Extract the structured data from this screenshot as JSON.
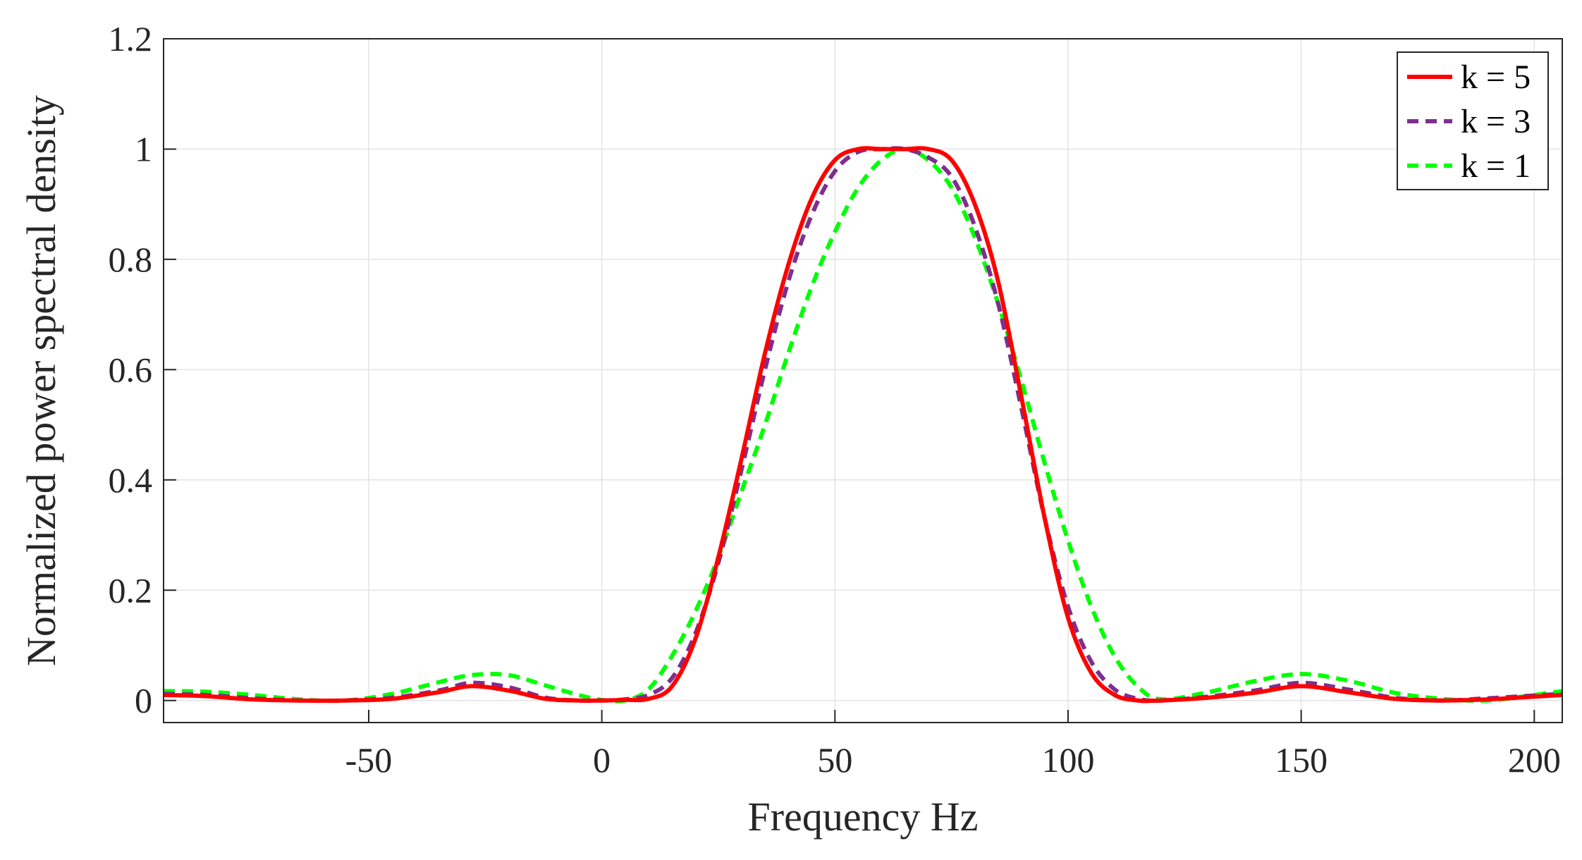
{
  "chart_data": {
    "type": "line",
    "title": "",
    "xlabel": "Frequency Hz",
    "ylabel": "Normalized power spectral density",
    "xlim": [
      -94,
      206
    ],
    "ylim": [
      -0.04,
      1.2
    ],
    "xticks": [
      -50,
      0,
      50,
      100,
      150,
      200
    ],
    "xtick_labels": [
      "-50",
      "0",
      "50",
      "100",
      "150",
      "200"
    ],
    "yticks": [
      0,
      0.2,
      0.4,
      0.6,
      0.8,
      1,
      1.2
    ],
    "ytick_labels": [
      "0",
      "0.2",
      "0.4",
      "0.6",
      "0.8",
      "1",
      "1.2"
    ],
    "grid": true,
    "legend_position": "top-right",
    "x": [
      -94,
      -85,
      -75,
      -65,
      -55,
      -45,
      -35,
      -28,
      -20,
      -12,
      -5,
      0,
      5,
      10,
      15,
      20,
      25,
      30,
      35,
      40,
      45,
      50,
      55,
      60,
      65,
      70,
      75,
      80,
      85,
      90,
      95,
      100,
      105,
      110,
      115,
      120,
      130,
      140,
      150,
      160,
      170,
      180,
      190,
      200,
      206
    ],
    "series": [
      {
        "name": "k = 5",
        "color": "#ff0000",
        "dash": "solid",
        "values": [
          0.01,
          0.008,
          0.002,
          0,
          0,
          0.003,
          0.015,
          0.026,
          0.018,
          0.003,
          0,
          0,
          0.001,
          0.003,
          0.025,
          0.11,
          0.26,
          0.44,
          0.63,
          0.79,
          0.91,
          0.98,
          1.0,
          1.0,
          1.0,
          1.0,
          0.98,
          0.9,
          0.76,
          0.55,
          0.33,
          0.15,
          0.05,
          0.01,
          0.0,
          0.0,
          0.005,
          0.014,
          0.026,
          0.015,
          0.003,
          0.0,
          0.002,
          0.007,
          0.01
        ]
      },
      {
        "name": "k = 3",
        "color": "#7e2f8e",
        "dash": "dashed",
        "values": [
          0.012,
          0.01,
          0.004,
          0,
          0,
          0.005,
          0.018,
          0.032,
          0.024,
          0.005,
          0,
          0,
          0.002,
          0.01,
          0.04,
          0.12,
          0.25,
          0.42,
          0.6,
          0.76,
          0.88,
          0.96,
          0.995,
          1.0,
          1.0,
          0.985,
          0.95,
          0.86,
          0.72,
          0.53,
          0.33,
          0.17,
          0.07,
          0.02,
          0.003,
          0.0,
          0.007,
          0.018,
          0.032,
          0.02,
          0.005,
          0.0,
          0.004,
          0.009,
          0.012
        ]
      },
      {
        "name": "k = 1",
        "color": "#00ff00",
        "dash": "dashed",
        "values": [
          0.017,
          0.016,
          0.01,
          0.002,
          0,
          0.012,
          0.033,
          0.046,
          0.046,
          0.027,
          0.01,
          0.001,
          0.0,
          0.02,
          0.08,
          0.16,
          0.26,
          0.38,
          0.5,
          0.63,
          0.75,
          0.85,
          0.93,
          0.98,
          1.0,
          0.98,
          0.93,
          0.84,
          0.72,
          0.58,
          0.43,
          0.29,
          0.17,
          0.08,
          0.025,
          0.002,
          0.015,
          0.035,
          0.048,
          0.036,
          0.014,
          0.003,
          0.0,
          0.01,
          0.017
        ]
      }
    ]
  }
}
